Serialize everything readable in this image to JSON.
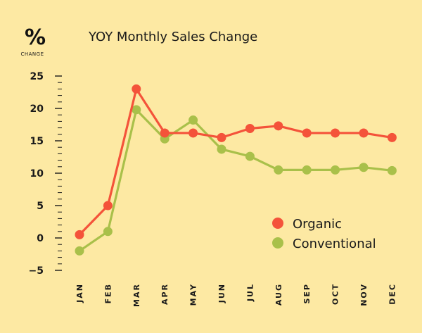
{
  "chart_data": {
    "type": "line",
    "title": "YOY Monthly Sales Change",
    "unit_symbol": "%",
    "unit_label": "CHANGE",
    "categories": [
      "JAN",
      "FEB",
      "MAR",
      "APR",
      "MAY",
      "JUN",
      "JUL",
      "AUG",
      "SEP",
      "OCT",
      "NOV",
      "DEC"
    ],
    "series": [
      {
        "name": "Organic",
        "color": "#f4533a",
        "values": [
          0.5,
          5,
          23,
          16.2,
          16.2,
          15.5,
          16.9,
          17.3,
          16.2,
          16.2,
          16.2,
          15.5
        ]
      },
      {
        "name": "Conventional",
        "color": "#a9c04a",
        "values": [
          -2,
          1,
          19.8,
          15.3,
          18.2,
          13.7,
          12.6,
          10.5,
          10.5,
          10.5,
          10.9,
          10.4
        ]
      }
    ],
    "ylim": [
      -5,
      25
    ],
    "yticks": [
      -5,
      0,
      5,
      10,
      15,
      20,
      25
    ],
    "legend_position": "lower-right",
    "grid": false,
    "background": "#fde9a3",
    "axis_color": "#1a1a1a"
  }
}
